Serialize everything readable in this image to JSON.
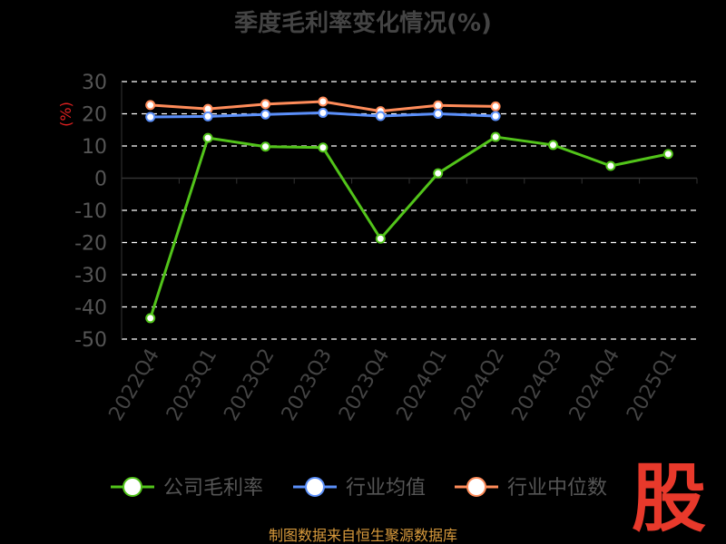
{
  "chart_data": {
    "type": "line",
    "title": "季度毛利率变化情况(%)",
    "unit_label": "(%)",
    "categories": [
      "2022Q4",
      "2023Q1",
      "2023Q2",
      "2023Q3",
      "2023Q4",
      "2024Q1",
      "2024Q2",
      "2024Q3",
      "2024Q4",
      "2025Q1"
    ],
    "ylim": [
      -50,
      30
    ],
    "yticks": [
      30,
      20,
      10,
      0,
      -10,
      -20,
      -30,
      -40,
      -50
    ],
    "grid": true,
    "legend_position": "bottom",
    "series": [
      {
        "name": "公司毛利率",
        "color": "#52c41a",
        "values": [
          -43.5,
          12.5,
          9.8,
          9.5,
          -18.8,
          1.5,
          12.8,
          10.3,
          3.8,
          7.5
        ]
      },
      {
        "name": "行业均值",
        "color": "#5b8ff9",
        "values": [
          19.0,
          19.2,
          19.8,
          20.3,
          19.3,
          20.0,
          19.3,
          null,
          null,
          null
        ]
      },
      {
        "name": "行业中位数",
        "color": "#ff8c5a",
        "values": [
          22.7,
          21.5,
          23.0,
          23.8,
          20.8,
          22.6,
          22.3,
          null,
          null,
          null
        ]
      }
    ]
  },
  "footer": {
    "source": "制图数据来自恒生聚源数据库",
    "logo_text": "股"
  }
}
